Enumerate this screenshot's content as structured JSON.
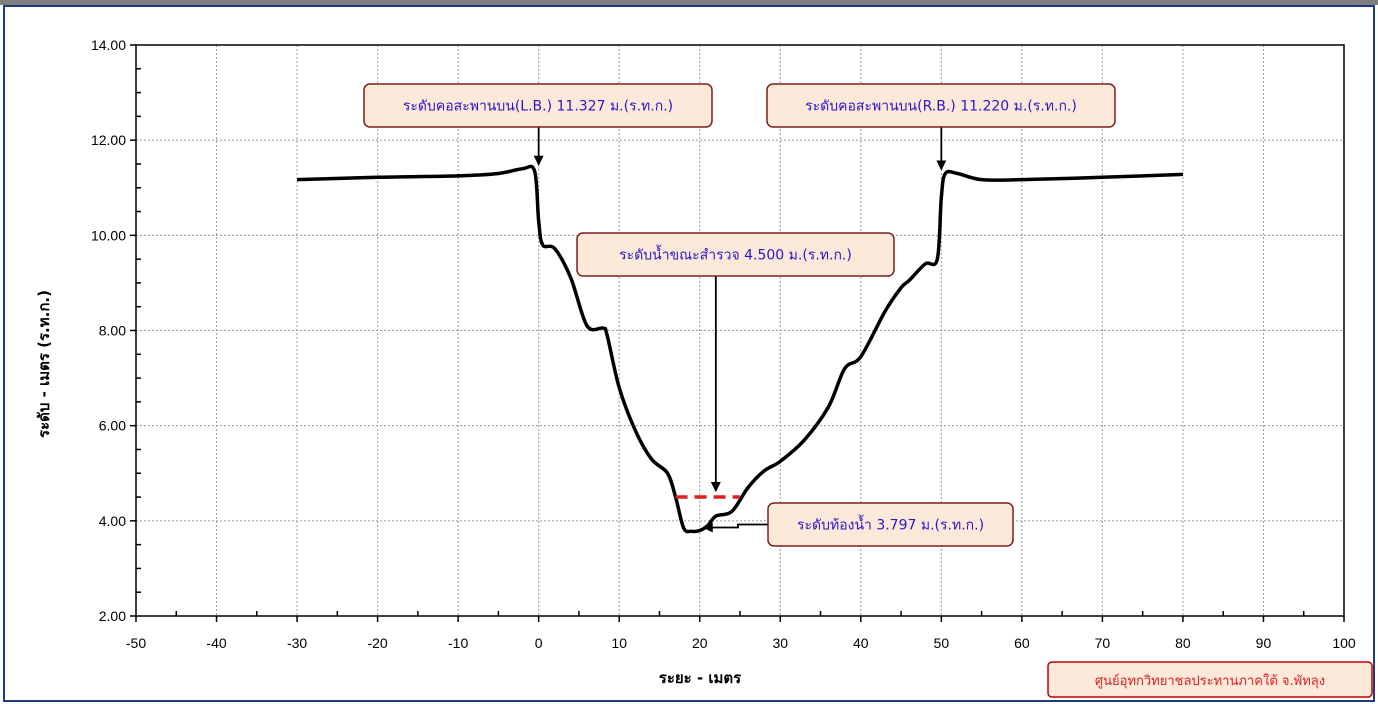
{
  "chart_data": {
    "type": "line",
    "title": "",
    "xlabel": "ระยะ - เมตร",
    "ylabel": "ระดับ - เมตร (ร.ท.ก.)",
    "xlim": [
      -50,
      100
    ],
    "ylim": [
      2,
      14
    ],
    "x_ticks": [
      "-50",
      "-40",
      "-30",
      "-20",
      "-10",
      "0",
      "10",
      "20",
      "30",
      "40",
      "50",
      "60",
      "70",
      "80",
      "90",
      "100"
    ],
    "y_ticks": [
      "2.00",
      "4.00",
      "6.00",
      "8.00",
      "10.00",
      "12.00",
      "14.00"
    ],
    "grid": true,
    "series": [
      {
        "color": "#000000",
        "points": [
          [
            -30,
            11.17
          ],
          [
            -20,
            11.22
          ],
          [
            -10,
            11.25
          ],
          [
            -5,
            11.3
          ],
          [
            -2,
            11.4
          ],
          [
            -0.5,
            11.35
          ],
          [
            0,
            10.3
          ],
          [
            0.5,
            9.8
          ],
          [
            2,
            9.72
          ],
          [
            4,
            9.1
          ],
          [
            6,
            8.1
          ],
          [
            8,
            8.05
          ],
          [
            8.5,
            7.9
          ],
          [
            10,
            6.8
          ],
          [
            12,
            5.9
          ],
          [
            14,
            5.3
          ],
          [
            16,
            5.0
          ],
          [
            17,
            4.5
          ],
          [
            18,
            3.85
          ],
          [
            19,
            3.78
          ],
          [
            20,
            3.797
          ],
          [
            21,
            3.9
          ],
          [
            22,
            4.1
          ],
          [
            24,
            4.2
          ],
          [
            26,
            4.7
          ],
          [
            28,
            5.05
          ],
          [
            30,
            5.25
          ],
          [
            33,
            5.7
          ],
          [
            36,
            6.4
          ],
          [
            38,
            7.2
          ],
          [
            40,
            7.45
          ],
          [
            43,
            8.4
          ],
          [
            45,
            8.9
          ],
          [
            46,
            9.05
          ],
          [
            48,
            9.4
          ],
          [
            49.5,
            9.5
          ],
          [
            50,
            10.8
          ],
          [
            50.5,
            11.3
          ],
          [
            52,
            11.3
          ],
          [
            55,
            11.17
          ],
          [
            60,
            11.17
          ],
          [
            70,
            11.22
          ],
          [
            80,
            11.28
          ]
        ]
      }
    ],
    "water_level": {
      "x_from": 17,
      "x_to": 25,
      "y": 4.5,
      "color": "#e02020"
    },
    "annotations": [
      {
        "text": "ระดับคอสะพานบน(L.B.) 11.327 ม.(ร.ท.ก.)",
        "point_x": 0,
        "point_y": 11.327
      },
      {
        "text": "ระดับคอสะพานบน(R.B.) 11.220 ม.(ร.ท.ก.)",
        "point_x": 50,
        "point_y": 11.22
      },
      {
        "text": "ระดับน้ำขณะสำรวจ 4.500 ม.(ร.ท.ก.)",
        "point_x": 22,
        "point_y": 4.5
      },
      {
        "text": "ระดับท้องน้ำ 3.797 ม.(ร.ท.ก.)",
        "point_x": 21,
        "point_y": 3.797
      }
    ]
  },
  "footer": {
    "text": "ศูนย์อุทกวิทยาชลประทานภาคใต้ จ.พัทลุง"
  },
  "colors": {
    "callout_fill": "#fde9d9",
    "callout_border": "#7a1f1f",
    "callout_text": "#2a16c9",
    "frame_border": "#1f3b7a"
  }
}
